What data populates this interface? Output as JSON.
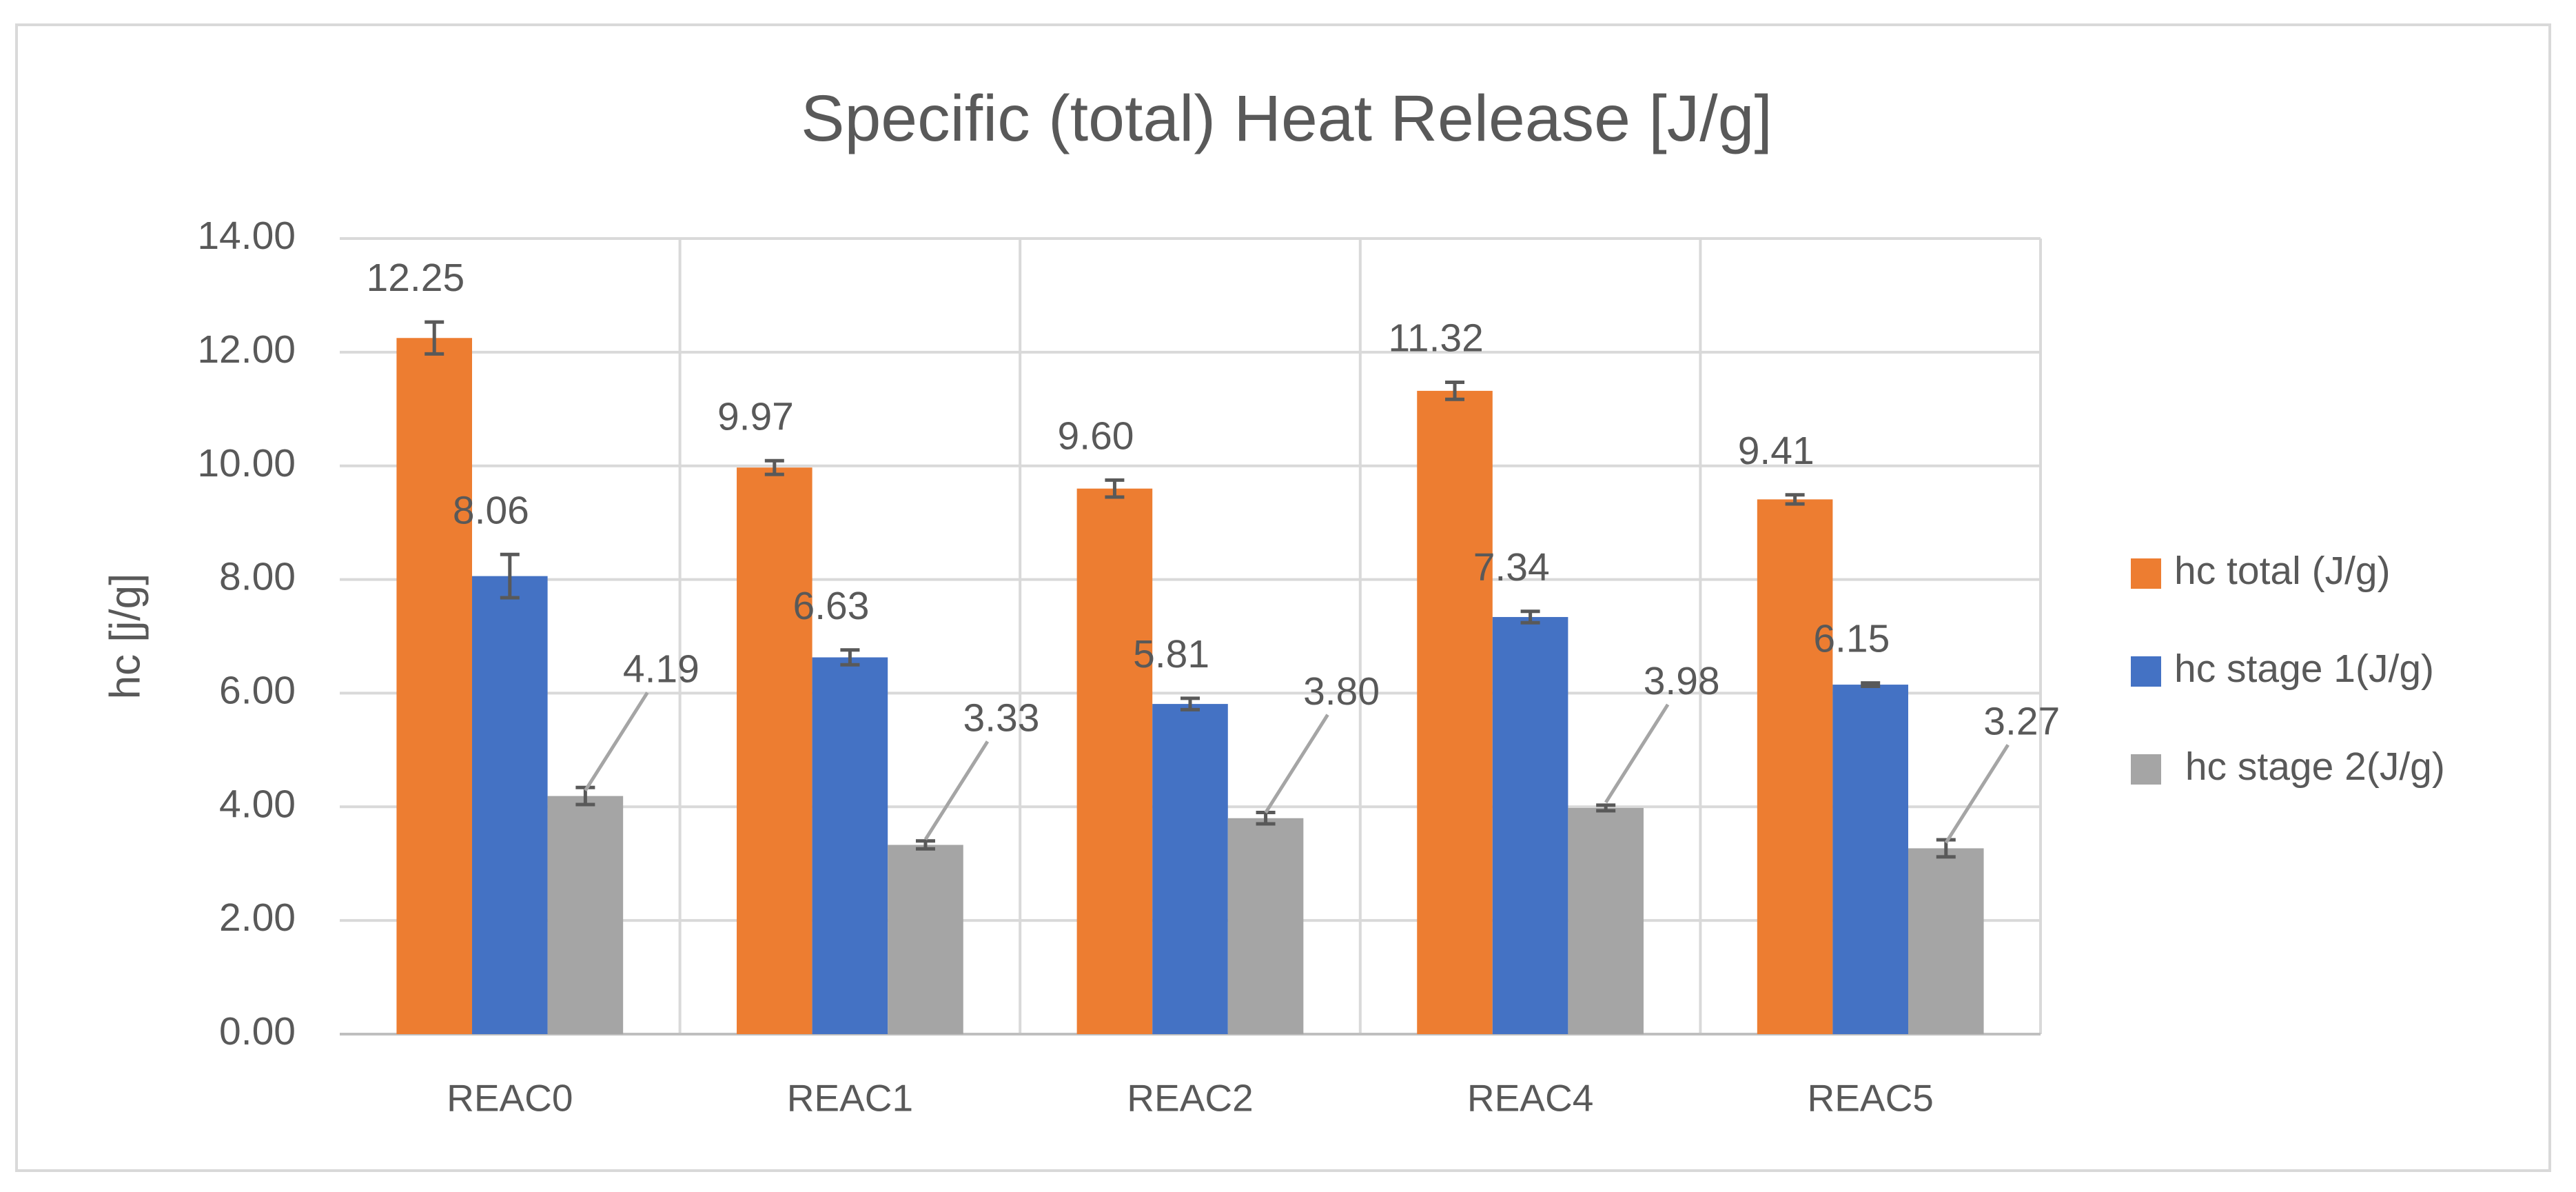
{
  "chart_data": {
    "type": "bar",
    "title": "Specific (total) Heat Release [J/g]",
    "y_label": "hc [j/g]",
    "categories": [
      "REAC0",
      "REAC1",
      "REAC2",
      "REAC4",
      "REAC5"
    ],
    "series": [
      {
        "name": "hc total (J/g)",
        "color": "#ed7d31",
        "values": [
          12.25,
          9.97,
          9.6,
          11.32,
          9.41
        ],
        "value_labels": [
          "12.25",
          "9.97",
          "9.60",
          "11.32",
          "9.41"
        ],
        "errors": [
          0.28,
          0.12,
          0.15,
          0.15,
          0.08
        ]
      },
      {
        "name": "hc stage 1(J/g)",
        "color": "#4472c4",
        "values": [
          8.06,
          6.63,
          5.81,
          7.34,
          6.15
        ],
        "value_labels": [
          "8.06",
          "6.63",
          "5.81",
          "7.34",
          "6.15"
        ],
        "errors": [
          0.38,
          0.13,
          0.1,
          0.1,
          0.03
        ]
      },
      {
        "name": " hc stage 2(J/g)",
        "color": "#a5a5a5",
        "values": [
          4.19,
          3.33,
          3.8,
          3.98,
          3.27
        ],
        "value_labels": [
          "4.19",
          "3.33",
          "3.80",
          "3.98",
          "3.27"
        ],
        "errors": [
          0.15,
          0.07,
          0.1,
          0.05,
          0.15
        ]
      }
    ],
    "ylim": [
      0,
      14
    ],
    "yticks": [
      {
        "value": 0,
        "label": "0.00"
      },
      {
        "value": 2,
        "label": "2.00"
      },
      {
        "value": 4,
        "label": "4.00"
      },
      {
        "value": 6,
        "label": "6.00"
      },
      {
        "value": 8,
        "label": "8.00"
      },
      {
        "value": 10,
        "label": "10.00"
      },
      {
        "value": 12,
        "label": "12.00"
      },
      {
        "value": 14,
        "label": "14.00"
      }
    ],
    "grid": true,
    "legend": "right"
  }
}
